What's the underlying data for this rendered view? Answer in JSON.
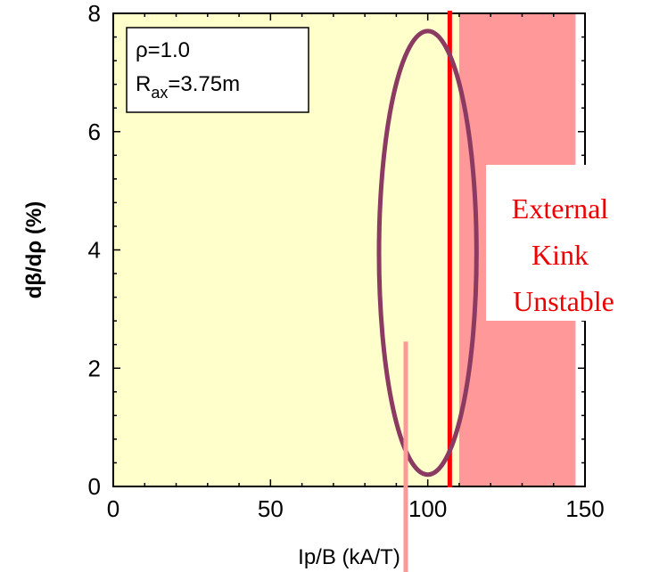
{
  "chart_data": {
    "type": "line",
    "xlabel": "Ip/B (kA/T)",
    "ylabel": "dβ/dρ (%)",
    "xlim": [
      0,
      150
    ],
    "ylim": [
      0,
      8
    ],
    "x_ticks": [
      "0",
      "50",
      "100",
      "150"
    ],
    "y_ticks": [
      "0",
      "2",
      "4",
      "6",
      "8"
    ],
    "grid": false,
    "inset": {
      "line1": "ρ=1.0",
      "line2_main": "R",
      "line2_sub": "ax",
      "line2_rest": "=3.75m"
    },
    "regions": [
      {
        "name": "stable",
        "x_range": [
          0,
          110
        ],
        "color": "#ffffcc"
      },
      {
        "name": "external-kink-unstable",
        "x_range": [
          110,
          147
        ],
        "color": "#ff9999"
      }
    ],
    "region_label": [
      "External",
      "Kink",
      "Unstable"
    ],
    "vertical_line": {
      "x": 107,
      "color": "#ff0000"
    },
    "ellipse": {
      "cx": 100,
      "cy": 3.95,
      "rx": 15.5,
      "ry": 3.75,
      "color": "#8b3a62"
    },
    "pointer_line": {
      "x": 93,
      "y_top": 2.45,
      "color": "#ff9999"
    },
    "colors": {
      "stable_bg": "#ffffcc",
      "unstable_bg": "#ff9999",
      "label_text": "#ee0000",
      "kink_line": "#ff0000",
      "ellipse": "#8b3a62",
      "pointer": "#ff9999"
    }
  }
}
